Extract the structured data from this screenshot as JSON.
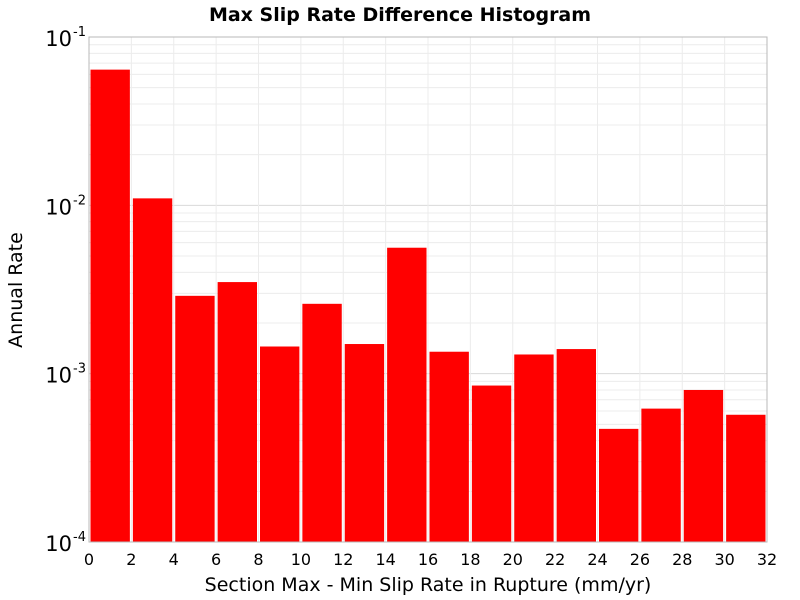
{
  "chart_data": {
    "type": "bar",
    "title": "Max Slip Rate Difference Histogram",
    "xlabel": "Section Max - Min Slip Rate in Rupture (mm/yr)",
    "ylabel": "Annual Rate",
    "xlim": [
      0,
      32
    ],
    "ylim": [
      0.0001,
      0.1
    ],
    "yscale": "log",
    "grid": true,
    "bar_color": "#ff0000",
    "bin_width": 2,
    "x": [
      1,
      3,
      5,
      7,
      9,
      11,
      13,
      15,
      17,
      19,
      21,
      23,
      25,
      27,
      29,
      31
    ],
    "values": [
      0.064,
      0.011,
      0.0029,
      0.0035,
      0.00145,
      0.0026,
      0.0015,
      0.0056,
      0.00135,
      0.00085,
      0.0013,
      0.0014,
      0.00047,
      0.00062,
      0.0008,
      0.00057
    ],
    "x_ticks": [
      "0",
      "2",
      "4",
      "6",
      "8",
      "10",
      "12",
      "14",
      "16",
      "18",
      "20",
      "22",
      "24",
      "26",
      "28",
      "30",
      "32"
    ],
    "y_ticks": [
      {
        "base": "10",
        "exp": "-1"
      },
      {
        "base": "10",
        "exp": "-2"
      },
      {
        "base": "10",
        "exp": "-3"
      },
      {
        "base": "10",
        "exp": "-4"
      }
    ]
  }
}
